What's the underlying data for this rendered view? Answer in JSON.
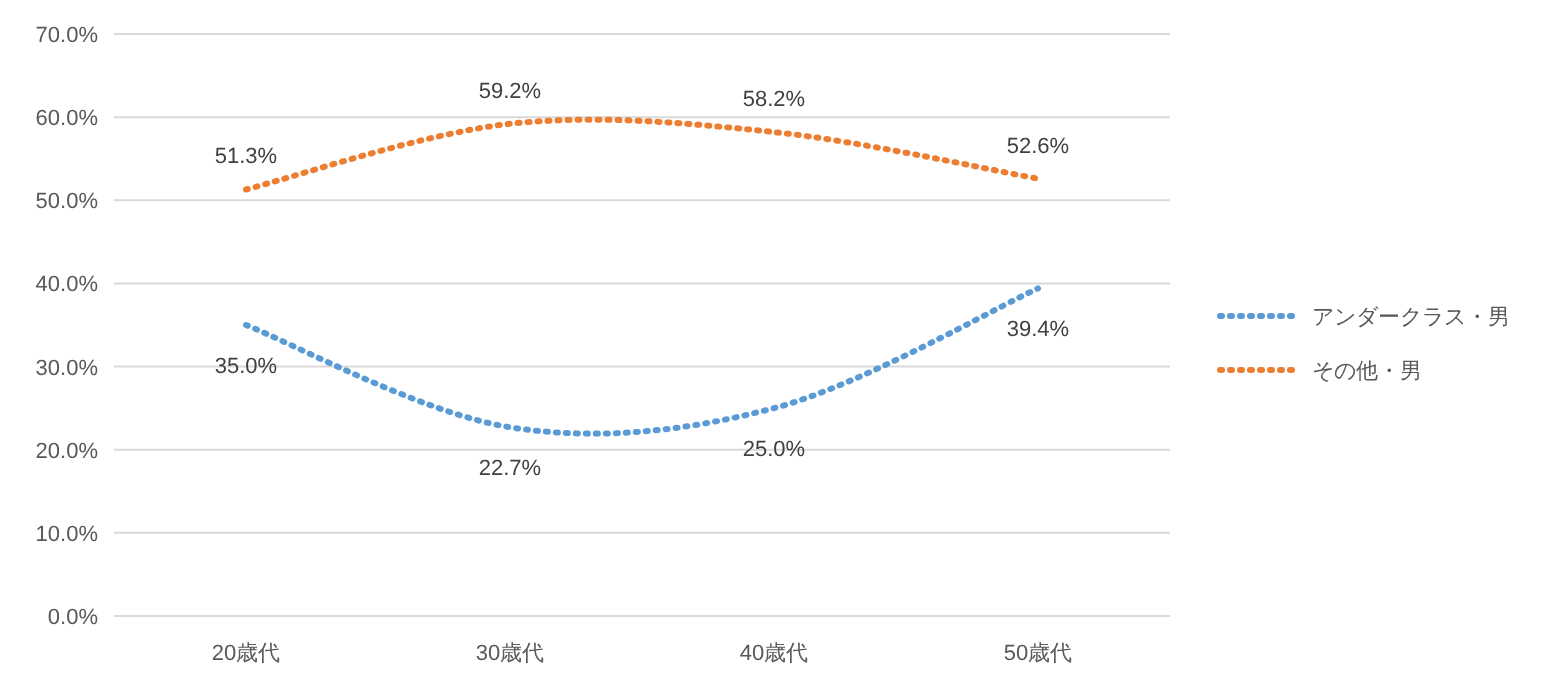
{
  "chart_data": {
    "type": "line",
    "categories": [
      "20歳代",
      "30歳代",
      "40歳代",
      "50歳代"
    ],
    "series": [
      {
        "name": "アンダークラス・男",
        "color": "#5b9bd5",
        "values": [
          35.0,
          22.7,
          25.0,
          39.4
        ],
        "value_labels": [
          "35.0%",
          "22.7%",
          "25.0%",
          "39.4%"
        ]
      },
      {
        "name": "その他・男",
        "color": "#ed7d31",
        "values": [
          51.3,
          59.2,
          58.2,
          52.6
        ],
        "value_labels": [
          "51.3%",
          "59.2%",
          "58.2%",
          "52.6%"
        ]
      }
    ],
    "ylim": [
      0,
      70
    ],
    "yticks": [
      {
        "value": 0,
        "label": "0.0%"
      },
      {
        "value": 10,
        "label": "10.0%"
      },
      {
        "value": 20,
        "label": "20.0%"
      },
      {
        "value": 30,
        "label": "30.0%"
      },
      {
        "value": 40,
        "label": "40.0%"
      },
      {
        "value": 50,
        "label": "50.0%"
      },
      {
        "value": 60,
        "label": "60.0%"
      },
      {
        "value": 70,
        "label": "70.0%"
      }
    ],
    "grid": "y",
    "legend": "right",
    "line_style": "dotted",
    "marker": "none"
  }
}
